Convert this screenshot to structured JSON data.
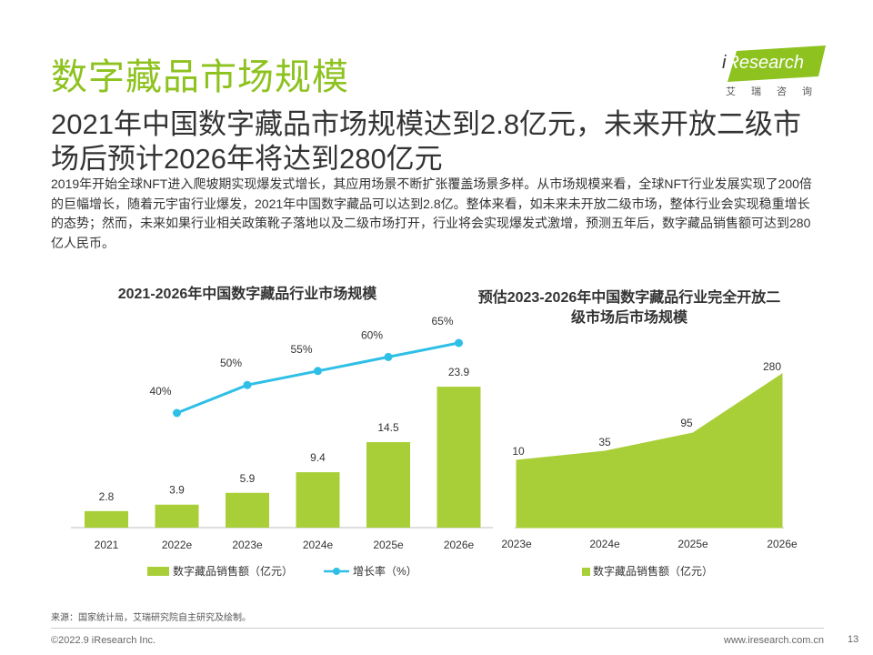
{
  "page": {
    "title": "数字藏品市场规模",
    "subtitle": "2021年中国数字藏品市场规模达到2.8亿元，未来开放二级市场后预计2026年将达到280亿元",
    "description": "2019年开始全球NFT进入爬坡期实现爆发式增长，其应用场景不断扩张覆盖场景多样。从市场规模来看，全球NFT行业发展实现了200倍的巨幅增长，随着元宇宙行业爆发，2021年中国数字藏品可以达到2.8亿。整体来看，如未来未开放二级市场，整体行业会实现稳重增长的态势；然而，未来如果行业相关政策靴子落地以及二级市场打开，行业将会实现爆发式激增，预测五年后，数字藏品销售额可达到280亿人民币。"
  },
  "logo": {
    "brand_i": "i",
    "brand_rest": "Research",
    "cn": "艾瑞咨询"
  },
  "colors": {
    "accent": "#8dc21f",
    "bar": "#a9cf38",
    "line": "#2ebfe6",
    "title_green": "#8dc21f"
  },
  "chart_data": [
    {
      "type": "bar+line",
      "title": "2021-2026年中国数字藏品行业市场规模",
      "categories": [
        "2021",
        "2022e",
        "2023e",
        "2024e",
        "2025e",
        "2026e"
      ],
      "series": [
        {
          "name": "数字藏品销售额（亿元）",
          "type": "bar",
          "values": [
            2.8,
            3.9,
            5.9,
            9.4,
            14.5,
            23.9
          ],
          "labels": [
            "2.8",
            "3.9",
            "5.9",
            "9.4",
            "14.5",
            "23.9"
          ]
        },
        {
          "name": "增长率（%）",
          "type": "line",
          "values": [
            null,
            40,
            50,
            55,
            60,
            65
          ],
          "labels": [
            "",
            "40%",
            "50%",
            "55%",
            "60%",
            "65%"
          ]
        }
      ],
      "ylim": [
        0,
        27
      ],
      "y2lim": [
        0,
        70
      ],
      "legend": "bottom"
    },
    {
      "type": "area",
      "title": "预估2023-2026年中国数字藏品行业完全开放二级市场后市场规模",
      "title_lines": [
        "预估2023-2026年中国数字藏品行业完全开放二",
        "级市场后市场规模"
      ],
      "categories": [
        "2023e",
        "2024e",
        "2025e",
        "2026e"
      ],
      "series": [
        {
          "name": "数字藏品销售额（亿元）",
          "values": [
            10,
            35,
            95,
            280
          ],
          "labels": [
            "10",
            "35",
            "95",
            "280"
          ]
        }
      ],
      "ylim": [
        0,
        300
      ],
      "legend": "bottom"
    }
  ],
  "footer": {
    "source": "来源：国家统计局，艾瑞研究院自主研究及绘制。",
    "copyright": "©2022.9 iResearch Inc.",
    "url": "www.iresearch.com.cn",
    "page_number": "13"
  }
}
